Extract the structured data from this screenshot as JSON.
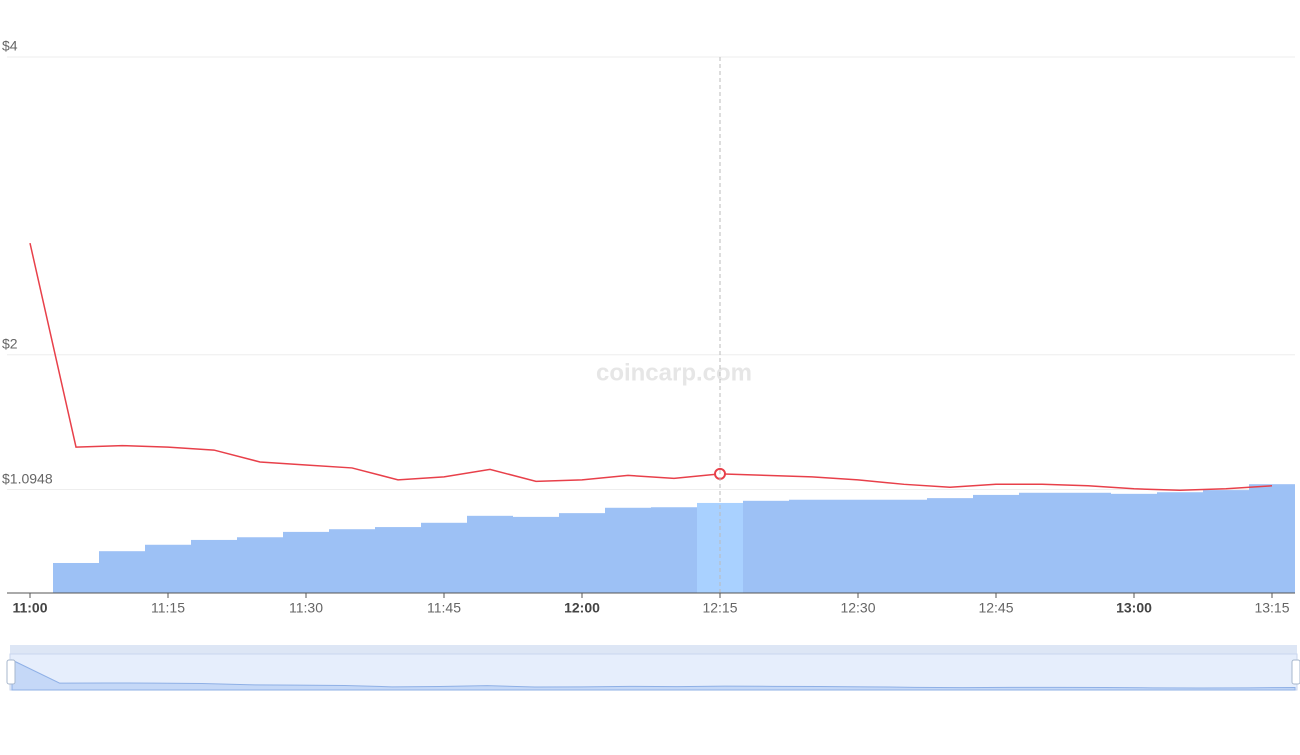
{
  "chart_data": {
    "type": "combo",
    "watermark": "coincarp.com",
    "categories": [
      "11:00",
      null,
      null,
      "11:15",
      null,
      null,
      "11:30",
      null,
      null,
      "11:45",
      null,
      null,
      "12:00",
      null,
      null,
      "12:15",
      null,
      null,
      "12:30",
      null,
      null,
      "12:45",
      null,
      null,
      "13:00",
      null,
      null,
      "13:15"
    ],
    "series": [
      {
        "type": "line",
        "color": "#e8404a",
        "values": [
          2.75,
          1.38,
          1.39,
          1.38,
          1.36,
          1.28,
          1.26,
          1.24,
          1.16,
          1.18,
          1.23,
          1.15,
          1.16,
          1.19,
          1.17,
          1.2,
          1.19,
          1.18,
          1.16,
          1.13,
          1.11,
          1.13,
          1.13,
          1.12,
          1.1,
          1.09,
          1.1,
          1.12
        ]
      },
      {
        "type": "bar",
        "axis": "y2",
        "color": "#9dc1f5",
        "values": [
          null,
          5.6,
          7.8,
          9.0,
          9.9,
          10.4,
          11.4,
          11.9,
          12.3,
          13.1,
          14.4,
          14.2,
          14.9,
          15.9,
          16.0,
          16.8,
          17.2,
          17.4,
          17.4,
          17.4,
          17.7,
          18.3,
          18.7,
          18.7,
          18.5,
          18.8,
          19.2,
          20.3
        ]
      }
    ],
    "ylim": [
      0.4,
      4
    ],
    "yticks": [
      {
        "value": 4,
        "label": "$4"
      },
      {
        "value": 2,
        "label": "$2"
      },
      {
        "value": 1.0948,
        "label": "$1.0948"
      }
    ],
    "y2lim": [
      0,
      100
    ],
    "grid": true,
    "highlight": "12:15",
    "highlight_color": "#a9d1ff"
  }
}
